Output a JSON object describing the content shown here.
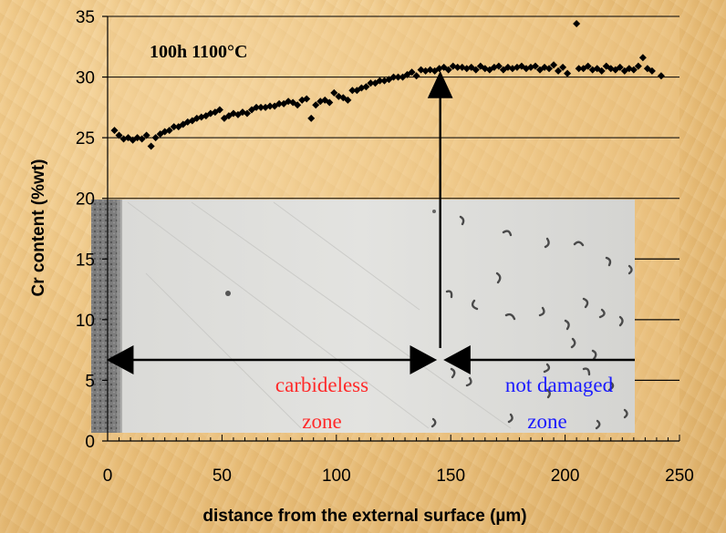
{
  "chart_data": {
    "type": "scatter",
    "annotation": "100h 1100°C",
    "xlabel": "distance from the external surface (µm)",
    "ylabel": "Cr content (%wt)",
    "xlim": [
      0,
      250
    ],
    "ylim": [
      0,
      35
    ],
    "xticks": [
      0,
      50,
      100,
      150,
      200,
      250
    ],
    "yticks": [
      0,
      5,
      10,
      15,
      20,
      25,
      30,
      35
    ],
    "grid": "horizontal",
    "legend": "none",
    "zone_labels": {
      "left_line1": "carbideless",
      "left_line2": "zone",
      "right_line1": "not damaged",
      "right_line2": "zone"
    },
    "colors": {
      "points": "#000000",
      "left_zone_text": "#ff2a2a",
      "right_zone_text": "#1a1aff"
    },
    "boundary_x": 147,
    "points": [
      [
        3,
        25.6
      ],
      [
        5,
        25.2
      ],
      [
        7,
        24.9
      ],
      [
        9,
        25.0
      ],
      [
        11,
        24.8
      ],
      [
        13,
        25.0
      ],
      [
        15,
        24.9
      ],
      [
        17,
        25.2
      ],
      [
        19,
        24.3
      ],
      [
        21,
        25.0
      ],
      [
        23,
        25.3
      ],
      [
        25,
        25.5
      ],
      [
        27,
        25.6
      ],
      [
        29,
        25.9
      ],
      [
        31,
        25.9
      ],
      [
        33,
        26.1
      ],
      [
        35,
        26.3
      ],
      [
        37,
        26.4
      ],
      [
        39,
        26.6
      ],
      [
        41,
        26.7
      ],
      [
        43,
        26.8
      ],
      [
        45,
        27.0
      ],
      [
        47,
        27.1
      ],
      [
        49,
        27.3
      ],
      [
        51,
        26.6
      ],
      [
        53,
        26.8
      ],
      [
        55,
        27.0
      ],
      [
        57,
        26.9
      ],
      [
        59,
        27.1
      ],
      [
        61,
        27.0
      ],
      [
        63,
        27.3
      ],
      [
        65,
        27.5
      ],
      [
        67,
        27.5
      ],
      [
        69,
        27.5
      ],
      [
        71,
        27.6
      ],
      [
        73,
        27.6
      ],
      [
        75,
        27.8
      ],
      [
        77,
        27.8
      ],
      [
        79,
        28.0
      ],
      [
        81,
        27.9
      ],
      [
        83,
        27.7
      ],
      [
        85,
        28.1
      ],
      [
        87,
        28.2
      ],
      [
        89,
        26.6
      ],
      [
        91,
        27.7
      ],
      [
        93,
        28.0
      ],
      [
        95,
        28.1
      ],
      [
        97,
        27.9
      ],
      [
        99,
        28.7
      ],
      [
        101,
        28.4
      ],
      [
        103,
        28.3
      ],
      [
        105,
        28.1
      ],
      [
        107,
        28.9
      ],
      [
        109,
        28.9
      ],
      [
        111,
        29.1
      ],
      [
        113,
        29.2
      ],
      [
        115,
        29.5
      ],
      [
        117,
        29.5
      ],
      [
        119,
        29.7
      ],
      [
        121,
        29.7
      ],
      [
        123,
        29.8
      ],
      [
        125,
        30.0
      ],
      [
        127,
        30.0
      ],
      [
        129,
        30.0
      ],
      [
        131,
        30.2
      ],
      [
        133,
        30.4
      ],
      [
        135,
        30.1
      ],
      [
        137,
        30.6
      ],
      [
        139,
        30.5
      ],
      [
        141,
        30.6
      ],
      [
        143,
        30.5
      ],
      [
        145,
        30.7
      ],
      [
        147,
        30.8
      ],
      [
        149,
        30.6
      ],
      [
        151,
        30.9
      ],
      [
        153,
        30.8
      ],
      [
        155,
        30.8
      ],
      [
        157,
        30.7
      ],
      [
        159,
        30.8
      ],
      [
        161,
        30.6
      ],
      [
        163,
        30.9
      ],
      [
        165,
        30.7
      ],
      [
        167,
        30.6
      ],
      [
        169,
        30.8
      ],
      [
        171,
        30.9
      ],
      [
        173,
        30.6
      ],
      [
        175,
        30.8
      ],
      [
        177,
        30.7
      ],
      [
        179,
        30.8
      ],
      [
        181,
        30.9
      ],
      [
        183,
        30.7
      ],
      [
        185,
        30.8
      ],
      [
        187,
        30.9
      ],
      [
        189,
        30.6
      ],
      [
        191,
        30.8
      ],
      [
        193,
        30.7
      ],
      [
        195,
        31.0
      ],
      [
        197,
        30.5
      ],
      [
        199,
        30.8
      ],
      [
        201,
        30.3
      ],
      [
        205,
        34.4
      ],
      [
        206,
        30.7
      ],
      [
        208,
        30.7
      ],
      [
        210,
        30.9
      ],
      [
        212,
        30.6
      ],
      [
        214,
        30.7
      ],
      [
        216,
        30.5
      ],
      [
        218,
        30.9
      ],
      [
        220,
        30.7
      ],
      [
        222,
        30.6
      ],
      [
        224,
        30.8
      ],
      [
        226,
        30.5
      ],
      [
        228,
        30.7
      ],
      [
        230,
        30.6
      ],
      [
        232,
        30.9
      ],
      [
        234,
        31.6
      ],
      [
        236,
        30.7
      ],
      [
        238,
        30.5
      ],
      [
        242,
        30.1
      ]
    ]
  }
}
